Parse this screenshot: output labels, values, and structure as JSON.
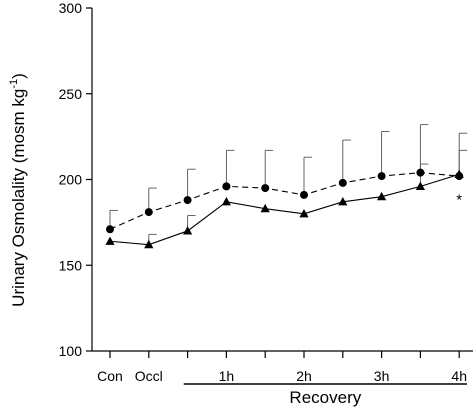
{
  "chart_data": {
    "type": "line",
    "ylabel": "Urinary Osmolality (mosm kg",
    "ylabel_sup": "-1",
    "ylabel_close": ")",
    "ylim": [
      100,
      300
    ],
    "yticks": [
      100,
      150,
      200,
      250,
      300
    ],
    "ytick_labels": [
      "100",
      "150",
      "200",
      "250",
      "300"
    ],
    "x": [
      0,
      1,
      2,
      3,
      4,
      5,
      6,
      7,
      8,
      9,
      10
    ],
    "xticks": [
      0,
      1,
      3,
      5,
      7,
      9
    ],
    "xtick_labels": [
      "Con",
      "Occl",
      "1h",
      "2h",
      "3h",
      "4h"
    ],
    "xlim": [
      -0.5,
      9.2
    ],
    "bracket": {
      "label": "Recovery",
      "from": 1.9,
      "to": 9.2
    },
    "series": [
      {
        "marker": "circle",
        "line": "dashed",
        "x": [
          0,
          1,
          2,
          3,
          4,
          5,
          6,
          7,
          8,
          9
        ],
        "values": [
          171,
          181,
          188,
          196,
          195,
          191,
          198,
          202,
          204,
          202
        ],
        "error": [
          11,
          14,
          18,
          21,
          22,
          22,
          25,
          26,
          28,
          25
        ]
      },
      {
        "marker": "triangle",
        "line": "solid",
        "x": [
          0,
          1,
          2,
          3,
          4,
          5,
          6,
          7,
          8,
          9
        ],
        "values": [
          164,
          162,
          170,
          187,
          183,
          180,
          187,
          190,
          196,
          203
        ],
        "error": [
          0,
          6,
          9,
          0,
          0,
          0,
          0,
          0,
          13,
          14
        ]
      }
    ],
    "annotations": [
      {
        "text": "*",
        "x": 9,
        "y": 189
      }
    ]
  }
}
